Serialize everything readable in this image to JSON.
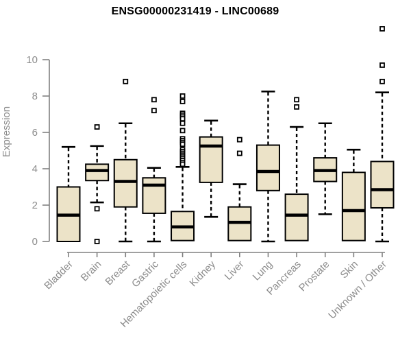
{
  "chart_data": {
    "type": "boxplot",
    "title": "ENSG00000231419 - LINC00689",
    "ylabel": "Expression",
    "xlabel": "",
    "ylim": [
      0,
      10
    ],
    "yticks": [
      0,
      2,
      4,
      6,
      8,
      10
    ],
    "grid": false,
    "legend": null,
    "x_label_rotation_deg": 45,
    "categories": [
      "Bladder",
      "Brain",
      "Breast",
      "Gastric",
      "Hematopoietic cells",
      "Kidney",
      "Liver",
      "Lung",
      "Pancreas",
      "Prostate",
      "Skin",
      "Unknown / Other"
    ],
    "boxes": [
      {
        "category": "Bladder",
        "whisker_low": 0,
        "q1": 0,
        "median": 1.45,
        "q3": 3.0,
        "whisker_high": 5.2,
        "outliers": []
      },
      {
        "category": "Brain",
        "whisker_low": 2.15,
        "q1": 3.35,
        "median": 3.9,
        "q3": 4.25,
        "whisker_high": 5.25,
        "outliers": [
          6.3,
          1.8,
          0
        ]
      },
      {
        "category": "Breast",
        "whisker_low": 0,
        "q1": 1.9,
        "median": 3.3,
        "q3": 4.5,
        "whisker_high": 6.5,
        "outliers": [
          8.8
        ]
      },
      {
        "category": "Gastric",
        "whisker_low": 0,
        "q1": 1.55,
        "median": 3.1,
        "q3": 3.5,
        "whisker_high": 4.05,
        "outliers": [
          7.8,
          7.2
        ]
      },
      {
        "category": "Hematopoietic cells",
        "whisker_low": 0,
        "q1": 0.05,
        "median": 0.8,
        "q3": 1.65,
        "whisker_high": 4.1,
        "outliers": [
          8.0,
          7.7,
          7.05,
          6.95,
          6.85,
          6.75,
          6.5,
          6.1,
          5.65,
          5.55,
          5.45,
          5.35,
          5.05,
          4.95,
          4.85,
          4.75,
          4.65,
          4.55,
          4.45,
          4.35,
          4.25
        ]
      },
      {
        "category": "Kidney",
        "whisker_low": 1.35,
        "q1": 3.25,
        "median": 5.25,
        "q3": 5.75,
        "whisker_high": 6.65,
        "outliers": []
      },
      {
        "category": "Liver",
        "whisker_low": 0,
        "q1": 0.05,
        "median": 1.05,
        "q3": 1.9,
        "whisker_high": 3.15,
        "outliers": [
          5.6,
          4.85
        ]
      },
      {
        "category": "Lung",
        "whisker_low": 0,
        "q1": 2.8,
        "median": 3.85,
        "q3": 5.3,
        "whisker_high": 8.25,
        "outliers": []
      },
      {
        "category": "Pancreas",
        "whisker_low": 0,
        "q1": 0.05,
        "median": 1.45,
        "q3": 2.6,
        "whisker_high": 6.3,
        "outliers": [
          7.8,
          7.4
        ]
      },
      {
        "category": "Prostate",
        "whisker_low": 1.5,
        "q1": 3.3,
        "median": 3.9,
        "q3": 4.6,
        "whisker_high": 6.5,
        "outliers": []
      },
      {
        "category": "Skin",
        "whisker_low": 0,
        "q1": 0.05,
        "median": 1.7,
        "q3": 3.8,
        "whisker_high": 5.05,
        "outliers": []
      },
      {
        "category": "Unknown / Other",
        "whisker_low": 0,
        "q1": 1.85,
        "median": 2.85,
        "q3": 4.4,
        "whisker_high": 8.2,
        "outliers": [
          11.7,
          9.7,
          8.8
        ]
      }
    ],
    "colors": {
      "box_fill": "#ece3c8",
      "box_border": "#000000",
      "median": "#000000",
      "axis": "#808080",
      "tick_label": "#8c8c8c",
      "title": "#000000",
      "background": "#ffffff",
      "outlier_fill": "#ffffff"
    }
  }
}
